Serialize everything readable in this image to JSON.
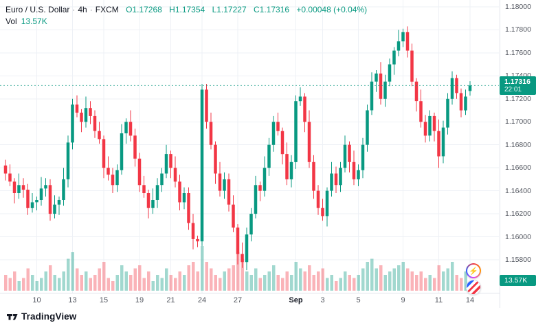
{
  "header": {
    "symbol_title": "Euro / U.S. Dollar",
    "sep": "·",
    "interval": "4h",
    "exchange": "FXCM",
    "ohlc": {
      "o_label": "O",
      "o": "1.17268",
      "h_label": "H",
      "h": "1.17354",
      "l_label": "L",
      "l": "1.17227",
      "c_label": "C",
      "c": "1.17316",
      "change": "+0.00048 (+0.04%)"
    },
    "vol_label": "Vol",
    "vol_value": "13.57K"
  },
  "price_axis": {
    "last_price_badge": {
      "price": "1.17316",
      "countdown": "22:01"
    },
    "volume_badge": "13.57K"
  },
  "footer": {
    "brand": "TradingView"
  },
  "colors": {
    "up": "#089981",
    "down": "#f23645",
    "grid": "#eef1f6",
    "axis_text": "#51555e",
    "badge": "#089981"
  },
  "chart_data": {
    "type": "candlestick",
    "title": "Euro / U.S. Dollar · 4h · FXCM",
    "ylim": [
      1.158,
      1.18
    ],
    "y_tick_labels": [
      "1.18000",
      "1.17800",
      "1.17600",
      "1.17400",
      "1.17200",
      "1.17000",
      "1.16800",
      "1.16600",
      "1.16400",
      "1.16200",
      "1.16000",
      "1.15800"
    ],
    "x_tick_labels": [
      {
        "text": "10",
        "index": 7
      },
      {
        "text": "13",
        "index": 15
      },
      {
        "text": "15",
        "index": 22
      },
      {
        "text": "19",
        "index": 30
      },
      {
        "text": "21",
        "index": 37
      },
      {
        "text": "24",
        "index": 44
      },
      {
        "text": "27",
        "index": 52
      },
      {
        "text": "Sep",
        "index": 65,
        "major": true
      },
      {
        "text": "3",
        "index": 71
      },
      {
        "text": "5",
        "index": 79
      },
      {
        "text": "9",
        "index": 89
      },
      {
        "text": "11",
        "index": 97
      },
      {
        "text": "14",
        "index": 104
      }
    ],
    "last_price": 1.17316,
    "volume_unit": "K",
    "columns": [
      "open",
      "high",
      "low",
      "close",
      "volume_k"
    ],
    "candles": [
      [
        1.1662,
        1.1667,
        1.1649,
        1.1655,
        25
      ],
      [
        1.1655,
        1.1663,
        1.1644,
        1.1648,
        20
      ],
      [
        1.1648,
        1.1651,
        1.1629,
        1.1638,
        30
      ],
      [
        1.1638,
        1.1655,
        1.1633,
        1.1645,
        15
      ],
      [
        1.1645,
        1.1651,
        1.1634,
        1.1641,
        20
      ],
      [
        1.1641,
        1.1646,
        1.1619,
        1.1625,
        35
      ],
      [
        1.1625,
        1.1638,
        1.1621,
        1.163,
        25
      ],
      [
        1.163,
        1.1635,
        1.1623,
        1.1632,
        15
      ],
      [
        1.1632,
        1.1652,
        1.1627,
        1.1642,
        20
      ],
      [
        1.1642,
        1.1651,
        1.1635,
        1.1645,
        30
      ],
      [
        1.1645,
        1.165,
        1.1614,
        1.162,
        40
      ],
      [
        1.162,
        1.1636,
        1.1616,
        1.1628,
        25
      ],
      [
        1.1628,
        1.1635,
        1.1619,
        1.1632,
        20
      ],
      [
        1.1632,
        1.166,
        1.1627,
        1.165,
        30
      ],
      [
        1.165,
        1.1688,
        1.1643,
        1.1682,
        50
      ],
      [
        1.1682,
        1.172,
        1.1676,
        1.1715,
        60
      ],
      [
        1.1715,
        1.1723,
        1.1704,
        1.1708,
        35
      ],
      [
        1.1708,
        1.1711,
        1.1691,
        1.17,
        25
      ],
      [
        1.17,
        1.1722,
        1.1695,
        1.1712,
        30
      ],
      [
        1.1712,
        1.1718,
        1.1698,
        1.1705,
        20
      ],
      [
        1.1705,
        1.171,
        1.1686,
        1.1692,
        25
      ],
      [
        1.1692,
        1.17,
        1.1681,
        1.1685,
        35
      ],
      [
        1.1685,
        1.1688,
        1.1651,
        1.166,
        45
      ],
      [
        1.166,
        1.167,
        1.1649,
        1.1654,
        20
      ],
      [
        1.1654,
        1.166,
        1.1638,
        1.1645,
        15
      ],
      [
        1.1645,
        1.1663,
        1.1639,
        1.1658,
        25
      ],
      [
        1.1658,
        1.1698,
        1.1654,
        1.169,
        40
      ],
      [
        1.169,
        1.1703,
        1.1681,
        1.17,
        30
      ],
      [
        1.17,
        1.171,
        1.1683,
        1.1688,
        25
      ],
      [
        1.1688,
        1.1694,
        1.1661,
        1.1668,
        35
      ],
      [
        1.1668,
        1.1673,
        1.1639,
        1.1645,
        40
      ],
      [
        1.1645,
        1.1653,
        1.1634,
        1.1638,
        20
      ],
      [
        1.1638,
        1.1641,
        1.1616,
        1.1625,
        30
      ],
      [
        1.1625,
        1.1642,
        1.162,
        1.1632,
        15
      ],
      [
        1.1632,
        1.1651,
        1.1625,
        1.1645,
        25
      ],
      [
        1.1645,
        1.166,
        1.1639,
        1.1655,
        20
      ],
      [
        1.1655,
        1.168,
        1.1651,
        1.1672,
        35
      ],
      [
        1.1672,
        1.1675,
        1.1651,
        1.166,
        25
      ],
      [
        1.166,
        1.167,
        1.1643,
        1.1648,
        20
      ],
      [
        1.1648,
        1.1654,
        1.1623,
        1.163,
        30
      ],
      [
        1.163,
        1.1643,
        1.1624,
        1.1638,
        25
      ],
      [
        1.1638,
        1.1643,
        1.1606,
        1.1612,
        40
      ],
      [
        1.1612,
        1.162,
        1.1589,
        1.1598,
        45
      ],
      [
        1.1598,
        1.1601,
        1.1591,
        1.1596,
        30
      ],
      [
        1.1596,
        1.1733,
        1.1592,
        1.1728,
        70
      ],
      [
        1.1728,
        1.1733,
        1.1694,
        1.17,
        45
      ],
      [
        1.17,
        1.1708,
        1.1676,
        1.168,
        35
      ],
      [
        1.168,
        1.1683,
        1.1646,
        1.1655,
        25
      ],
      [
        1.1655,
        1.1665,
        1.1635,
        1.164,
        20
      ],
      [
        1.164,
        1.1656,
        1.1633,
        1.165,
        30
      ],
      [
        1.165,
        1.1655,
        1.1622,
        1.1628,
        35
      ],
      [
        1.1628,
        1.1636,
        1.1604,
        1.1608,
        40
      ],
      [
        1.1608,
        1.1611,
        1.1576,
        1.1585,
        60
      ],
      [
        1.1585,
        1.1595,
        1.1573,
        1.1578,
        50
      ],
      [
        1.1578,
        1.1608,
        1.1571,
        1.1602,
        30
      ],
      [
        1.1602,
        1.1625,
        1.1596,
        1.162,
        25
      ],
      [
        1.162,
        1.1653,
        1.1616,
        1.1645,
        35
      ],
      [
        1.1645,
        1.1648,
        1.1631,
        1.164,
        20
      ],
      [
        1.164,
        1.167,
        1.1635,
        1.166,
        25
      ],
      [
        1.166,
        1.1686,
        1.1653,
        1.168,
        30
      ],
      [
        1.168,
        1.1705,
        1.1674,
        1.17,
        40
      ],
      [
        1.17,
        1.1708,
        1.1688,
        1.1692,
        25
      ],
      [
        1.1692,
        1.1695,
        1.1663,
        1.1672,
        20
      ],
      [
        1.1672,
        1.1682,
        1.1645,
        1.165,
        30
      ],
      [
        1.165,
        1.1671,
        1.1643,
        1.1665,
        25
      ],
      [
        1.1665,
        1.1723,
        1.1659,
        1.1718,
        45
      ],
      [
        1.1718,
        1.173,
        1.1714,
        1.1722,
        35
      ],
      [
        1.1722,
        1.1725,
        1.1691,
        1.17,
        30
      ],
      [
        1.17,
        1.171,
        1.166,
        1.1665,
        40
      ],
      [
        1.1665,
        1.1671,
        1.1633,
        1.164,
        25
      ],
      [
        1.164,
        1.1645,
        1.1619,
        1.1625,
        30
      ],
      [
        1.1625,
        1.1633,
        1.1614,
        1.1618,
        35
      ],
      [
        1.1618,
        1.1643,
        1.1609,
        1.164,
        20
      ],
      [
        1.164,
        1.1665,
        1.1635,
        1.1655,
        25
      ],
      [
        1.1655,
        1.1661,
        1.1638,
        1.1645,
        15
      ],
      [
        1.1645,
        1.1665,
        1.1639,
        1.166,
        20
      ],
      [
        1.166,
        1.1688,
        1.1656,
        1.168,
        30
      ],
      [
        1.168,
        1.1683,
        1.1656,
        1.1665,
        25
      ],
      [
        1.1665,
        1.1675,
        1.1645,
        1.165,
        20
      ],
      [
        1.165,
        1.1663,
        1.1644,
        1.1658,
        25
      ],
      [
        1.1658,
        1.1686,
        1.1651,
        1.168,
        35
      ],
      [
        1.168,
        1.1715,
        1.1674,
        1.171,
        45
      ],
      [
        1.171,
        1.1743,
        1.1706,
        1.1735,
        50
      ],
      [
        1.1735,
        1.1745,
        1.1726,
        1.1742,
        35
      ],
      [
        1.1742,
        1.1752,
        1.1715,
        1.172,
        40
      ],
      [
        1.172,
        1.1741,
        1.1713,
        1.1735,
        25
      ],
      [
        1.1735,
        1.1755,
        1.1731,
        1.175,
        30
      ],
      [
        1.175,
        1.1765,
        1.1741,
        1.1762,
        35
      ],
      [
        1.1762,
        1.178,
        1.1757,
        1.177,
        40
      ],
      [
        1.177,
        1.1781,
        1.1765,
        1.1778,
        45
      ],
      [
        1.1778,
        1.1783,
        1.1756,
        1.1762,
        35
      ],
      [
        1.1762,
        1.1768,
        1.1731,
        1.1735,
        30
      ],
      [
        1.1735,
        1.1738,
        1.1709,
        1.1718,
        25
      ],
      [
        1.1718,
        1.1728,
        1.1695,
        1.17,
        30
      ],
      [
        1.17,
        1.1706,
        1.1682,
        1.1688,
        20
      ],
      [
        1.1688,
        1.171,
        1.1683,
        1.1705,
        25
      ],
      [
        1.1705,
        1.1708,
        1.1683,
        1.1692,
        20
      ],
      [
        1.1692,
        1.1702,
        1.166,
        1.167,
        40
      ],
      [
        1.167,
        1.1701,
        1.1664,
        1.1695,
        30
      ],
      [
        1.1695,
        1.1725,
        1.1689,
        1.172,
        35
      ],
      [
        1.172,
        1.1744,
        1.1715,
        1.1738,
        45
      ],
      [
        1.1738,
        1.1741,
        1.172,
        1.1725,
        25
      ],
      [
        1.1725,
        1.1729,
        1.1704,
        1.171,
        20
      ],
      [
        1.171,
        1.1728,
        1.1706,
        1.1722,
        30
      ],
      [
        1.17268,
        1.17354,
        1.17227,
        1.17316,
        13.57
      ]
    ]
  }
}
